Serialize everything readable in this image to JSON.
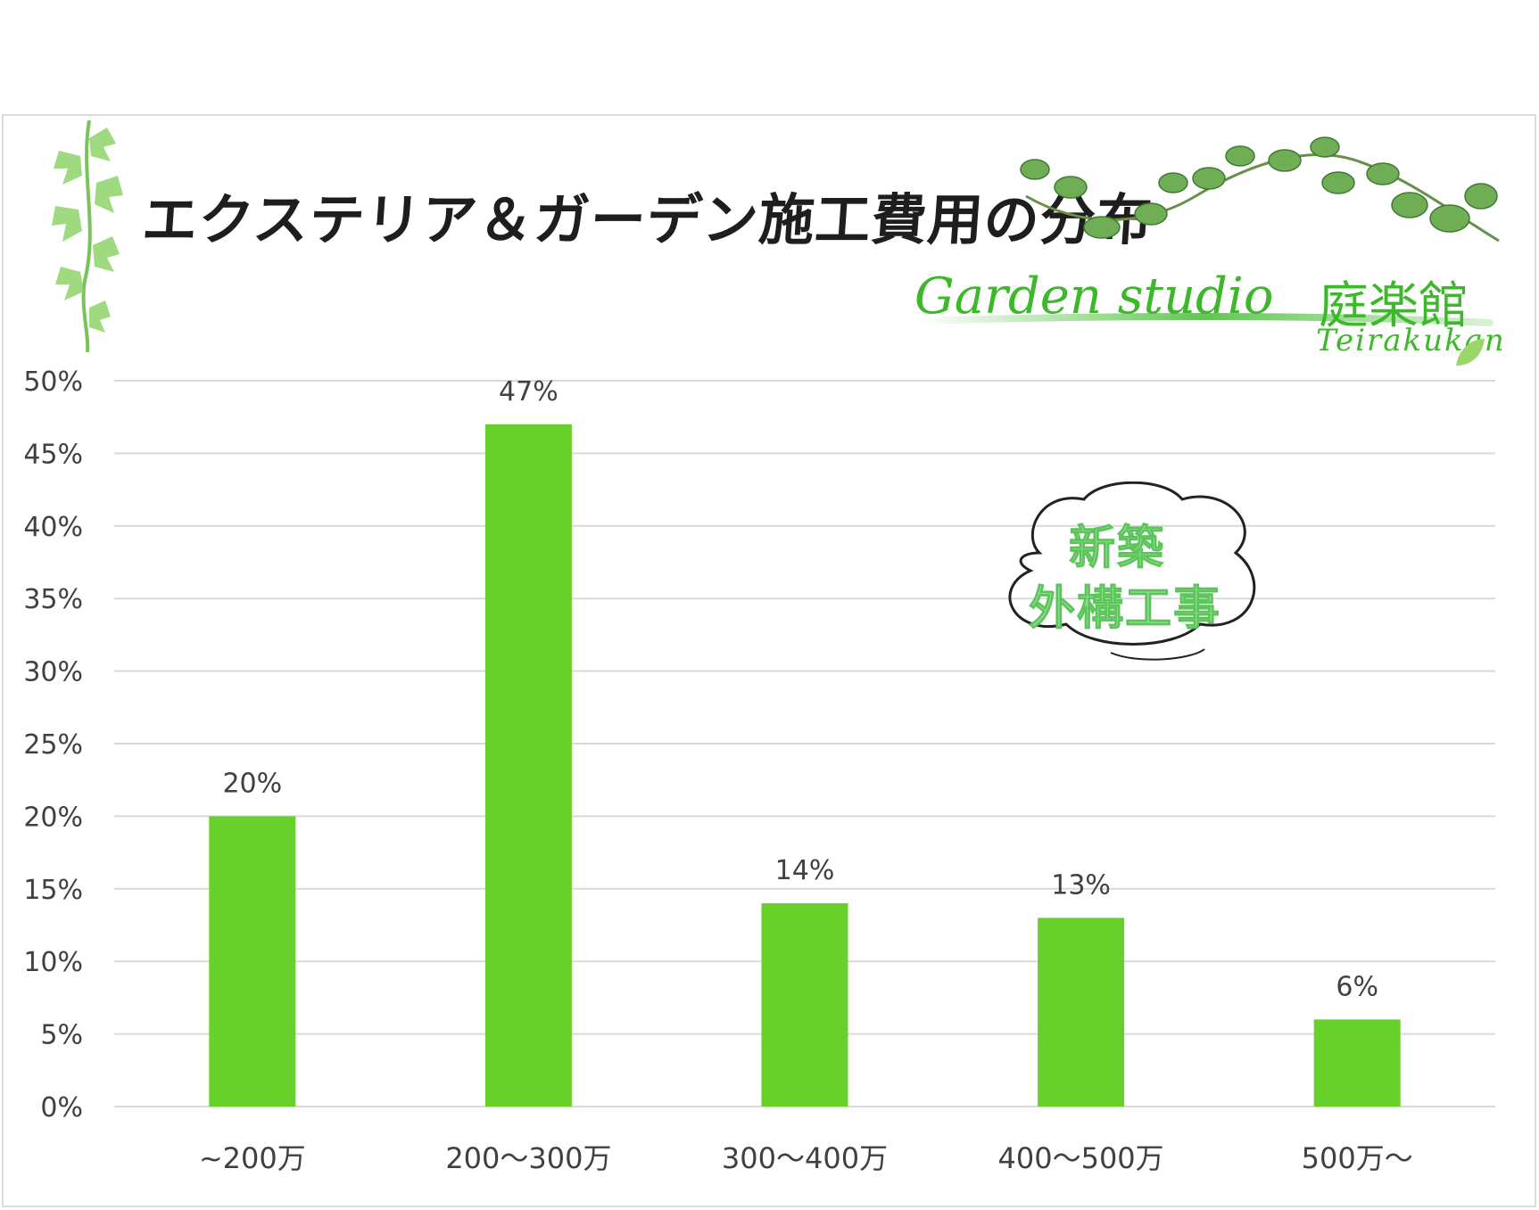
{
  "title": "エクステリア＆ガーデン施工費用の分布",
  "logo": {
    "name": "Garden studio",
    "kanji": "庭楽館",
    "sub": "Teirakukan"
  },
  "stamp": {
    "line1": "新築",
    "line2": "外構工事"
  },
  "colors": {
    "bar": "#66d12a",
    "grid": "#d9d9d9",
    "text": "#404040",
    "logo": "#3cb82a",
    "stamp": "#8de08a"
  },
  "chart_data": {
    "type": "bar",
    "categories": [
      "~200万",
      "200～300万",
      "300～400万",
      "400～500万",
      "500万～"
    ],
    "values": [
      20,
      47,
      14,
      13,
      6
    ],
    "data_labels": [
      "20%",
      "47%",
      "14%",
      "13%",
      "6%"
    ],
    "y_ticks": [
      "0%",
      "5%",
      "10%",
      "15%",
      "20%",
      "25%",
      "30%",
      "35%",
      "40%",
      "45%",
      "50%"
    ],
    "ylim": [
      0,
      50
    ],
    "grid": true
  }
}
